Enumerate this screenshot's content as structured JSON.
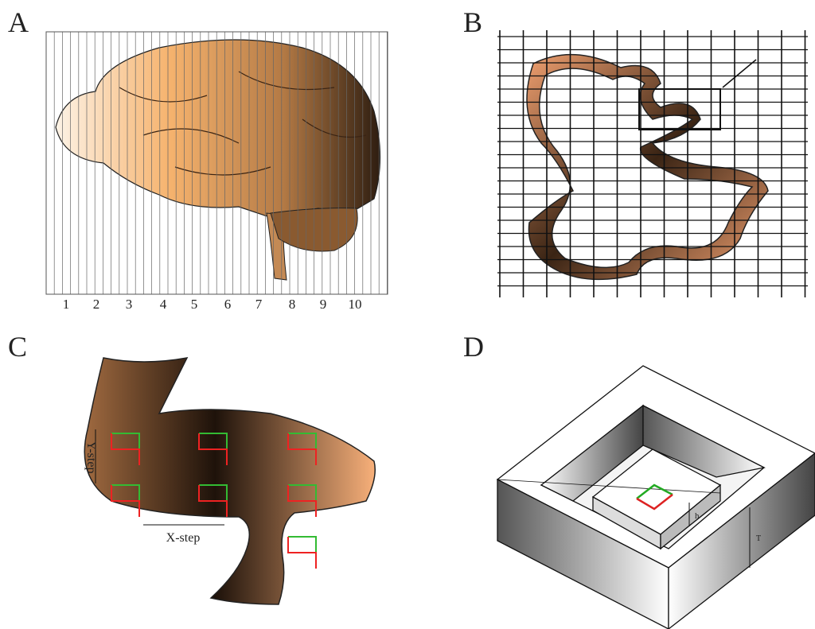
{
  "panels": [
    {
      "label": "A",
      "scale_labels": [
        1,
        2,
        3,
        4,
        5,
        6,
        7,
        8,
        9,
        10
      ]
    },
    {
      "label": "B"
    },
    {
      "label": "C",
      "y_step": "Y-step",
      "x_step": "X-step"
    },
    {
      "label": "D",
      "h_label": "h",
      "t_label": "T"
    }
  ]
}
